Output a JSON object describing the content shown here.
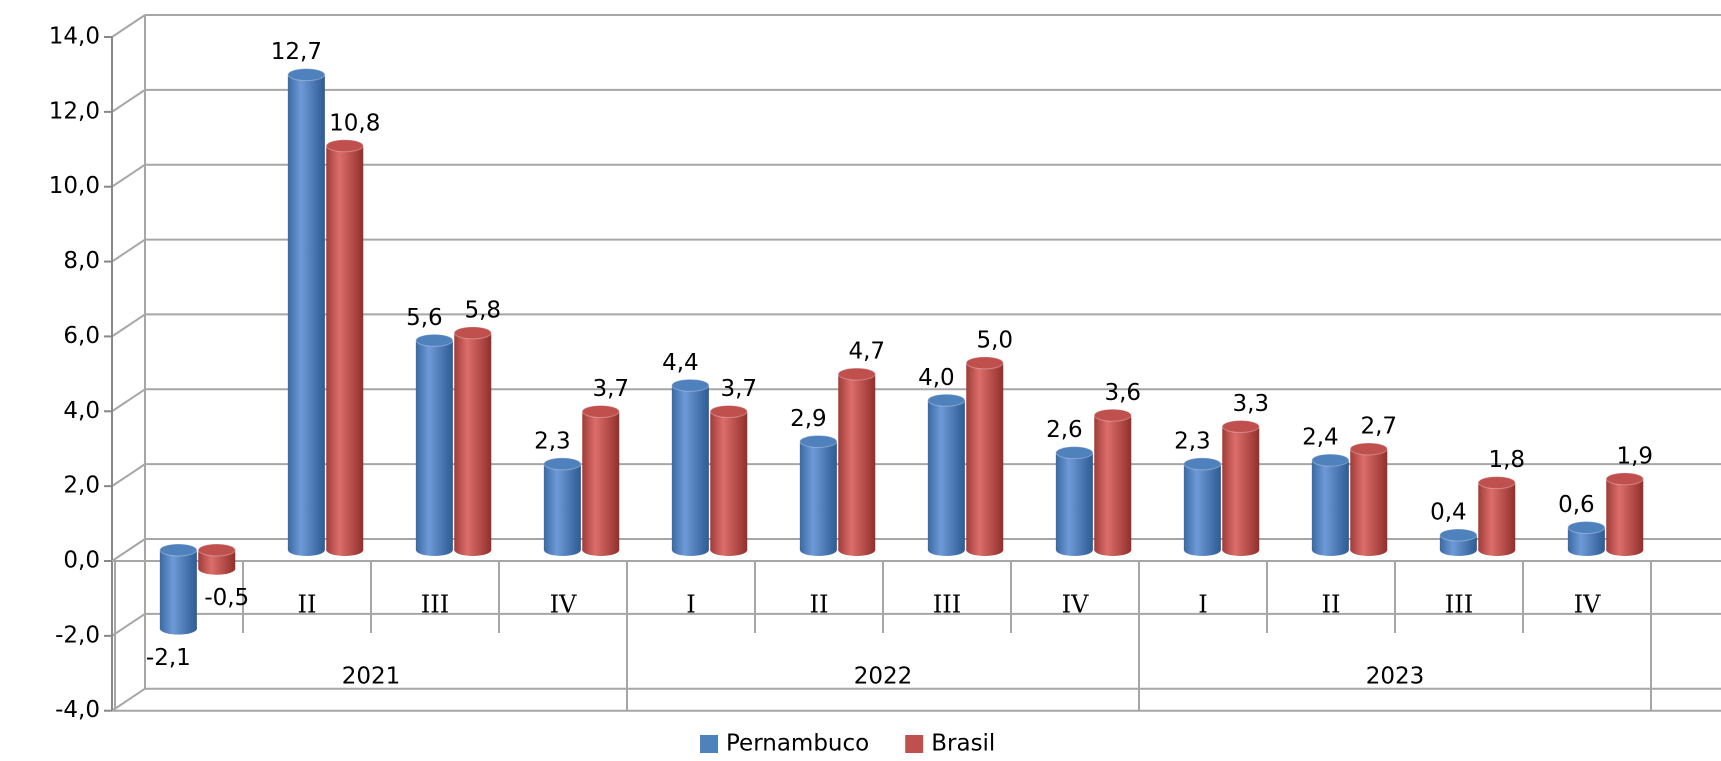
{
  "chart_data": {
    "type": "bar3d",
    "categories": [
      "I",
      "II",
      "III",
      "IV",
      "I",
      "II",
      "III",
      "IV",
      "I",
      "II",
      "III",
      "IV"
    ],
    "category_groups": [
      "2021",
      "2022",
      "2023"
    ],
    "series": [
      {
        "name": "Pernambuco",
        "color": "#4f81bd",
        "values": [
          -2.1,
          12.7,
          5.6,
          2.3,
          4.4,
          2.9,
          4.0,
          2.6,
          2.3,
          2.4,
          0.4,
          0.6
        ],
        "value_labels": [
          "-2,1",
          "12,7",
          "5,6",
          "2,3",
          "4,4",
          "2,9",
          "4,0",
          "2,6",
          "2,3",
          "2,4",
          "0,4",
          "0,6"
        ]
      },
      {
        "name": "Brasil",
        "color": "#c0504d",
        "values": [
          -0.5,
          10.8,
          5.8,
          3.7,
          3.7,
          4.7,
          5.0,
          3.6,
          3.3,
          2.7,
          1.8,
          1.9
        ],
        "value_labels": [
          "-0,5",
          "10,8",
          "5,8",
          "3,7",
          "3,7",
          "4,7",
          "5,0",
          "3,6",
          "3,3",
          "2,7",
          "1,8",
          "1,9"
        ]
      }
    ],
    "ylim": [
      -4,
      14
    ],
    "yticks": [
      {
        "value": -4,
        "label": "-4,0"
      },
      {
        "value": -2,
        "label": "-2,0"
      },
      {
        "value": 0,
        "label": "0,0"
      },
      {
        "value": 2,
        "label": "2,0"
      },
      {
        "value": 4,
        "label": "4,0"
      },
      {
        "value": 6,
        "label": "6,0"
      },
      {
        "value": 8,
        "label": "8,0"
      },
      {
        "value": 10,
        "label": "10,0"
      },
      {
        "value": 12,
        "label": "12,0"
      },
      {
        "value": 14,
        "label": "14,0"
      }
    ],
    "grid": true,
    "legend": "bottom"
  }
}
